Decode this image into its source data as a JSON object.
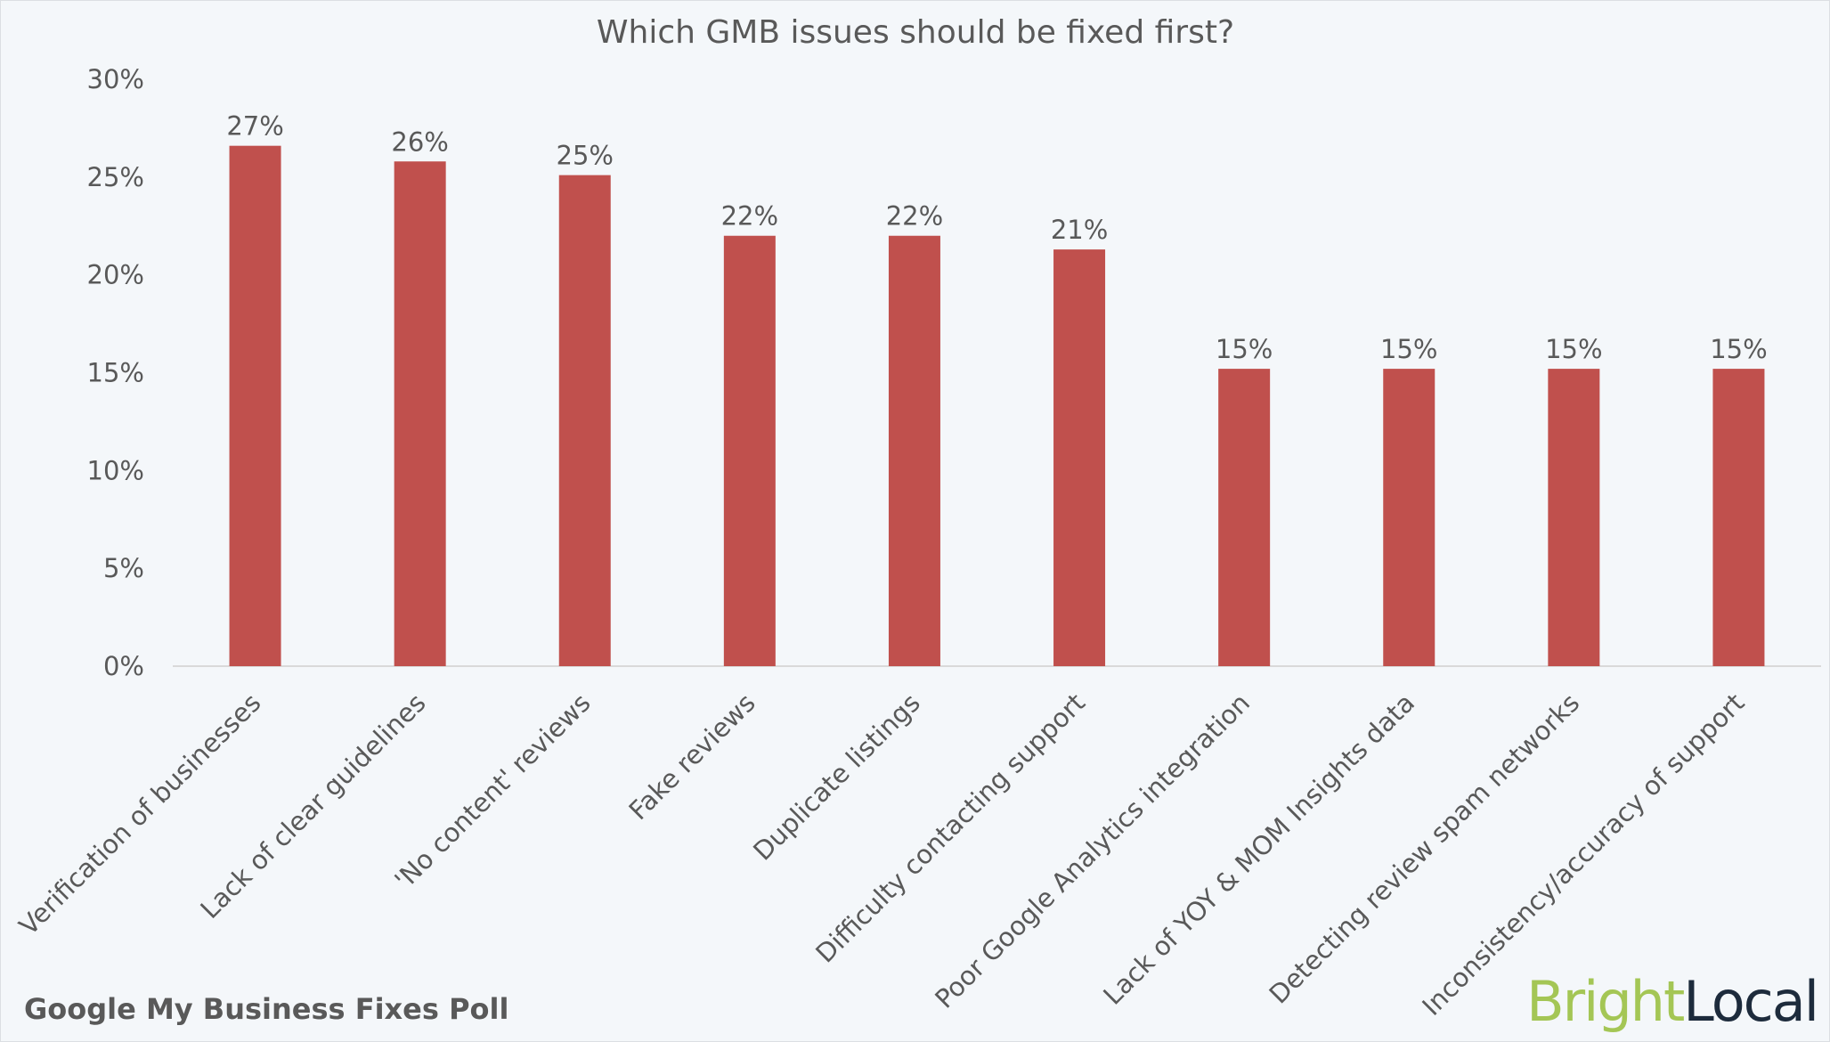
{
  "chart_data": {
    "type": "bar",
    "title": "Which GMB issues should be fixed first?",
    "xlabel": "",
    "ylabel": "",
    "ylim": [
      0,
      30
    ],
    "yticks": [
      "0%",
      "5%",
      "10%",
      "15%",
      "20%",
      "25%",
      "30%"
    ],
    "ytick_values": [
      0,
      5,
      10,
      15,
      20,
      25,
      30
    ],
    "grid": false,
    "categories": [
      "Verification of businesses",
      "Lack of clear guidelines",
      "'No content' reviews",
      "Fake reviews",
      "Duplicate listings",
      "Difficulty contacting support",
      "Poor Google Analytics integration",
      "Lack of YOY & MOM Insights data",
      "Detecting review spam networks",
      "Inconsistency/accuracy of support"
    ],
    "values": [
      26.6,
      25.8,
      25.1,
      22.0,
      22.0,
      21.3,
      15.2,
      15.2,
      15.2,
      15.2
    ],
    "data_labels": [
      "27%",
      "26%",
      "25%",
      "22%",
      "22%",
      "21%",
      "15%",
      "15%",
      "15%",
      "15%"
    ],
    "bar_color": "#c0504d"
  },
  "footer": {
    "caption": "Google My Business Fixes Poll",
    "logo_part1": "Bright",
    "logo_part2": "Local",
    "logo_color1": "#a4c655",
    "logo_color2": "#1d2b3c"
  }
}
